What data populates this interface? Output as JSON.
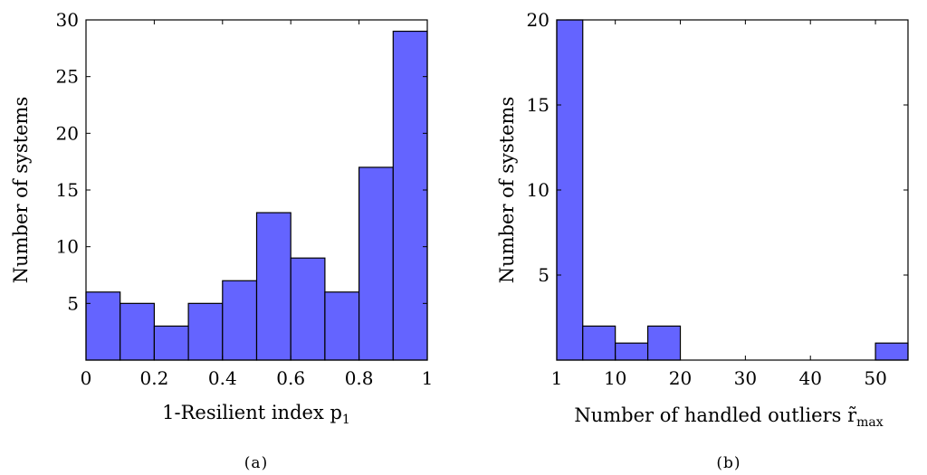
{
  "chart_data": [
    {
      "type": "bar",
      "id": "a",
      "caption": "(a)",
      "xlabel": "1-Resilient index p",
      "xlabel_sub": "1",
      "ylabel": "Number of systems",
      "xlim": [
        0,
        1
      ],
      "ylim": [
        0,
        30
      ],
      "xticks": [
        0,
        0.2,
        0.4,
        0.6,
        0.8,
        1
      ],
      "xtick_labels": [
        "0",
        "0.2",
        "0.4",
        "0.6",
        "0.8",
        "1"
      ],
      "yticks": [
        5,
        10,
        15,
        20,
        25,
        30
      ],
      "ytick_labels": [
        "5",
        "10",
        "15",
        "20",
        "25",
        "30"
      ],
      "bins": [
        {
          "x0": 0.0,
          "x1": 0.1,
          "value": 6
        },
        {
          "x0": 0.1,
          "x1": 0.2,
          "value": 5
        },
        {
          "x0": 0.2,
          "x1": 0.3,
          "value": 3
        },
        {
          "x0": 0.3,
          "x1": 0.4,
          "value": 5
        },
        {
          "x0": 0.4,
          "x1": 0.5,
          "value": 7
        },
        {
          "x0": 0.5,
          "x1": 0.6,
          "value": 13
        },
        {
          "x0": 0.6,
          "x1": 0.7,
          "value": 9
        },
        {
          "x0": 0.7,
          "x1": 0.8,
          "value": 6
        },
        {
          "x0": 0.8,
          "x1": 0.9,
          "value": 17
        },
        {
          "x0": 0.9,
          "x1": 1.0,
          "value": 29
        }
      ],
      "bar_color": "#6464ff",
      "grid": false
    },
    {
      "type": "bar",
      "id": "b",
      "caption": "(b)",
      "xlabel": "Number of handled outliers r̃",
      "xlabel_sub": "max",
      "ylabel": "Number of systems",
      "xlim": [
        1,
        55
      ],
      "ylim": [
        0,
        20
      ],
      "xticks": [
        1,
        10,
        20,
        30,
        40,
        50
      ],
      "xtick_labels": [
        "1",
        "10",
        "20",
        "30",
        "40",
        "50"
      ],
      "yticks": [
        5,
        10,
        15,
        20
      ],
      "ytick_labels": [
        "5",
        "10",
        "15",
        "20"
      ],
      "bins": [
        {
          "x0": 1,
          "x1": 5,
          "value": 20
        },
        {
          "x0": 5,
          "x1": 10,
          "value": 2
        },
        {
          "x0": 10,
          "x1": 15,
          "value": 1
        },
        {
          "x0": 15,
          "x1": 20,
          "value": 2
        },
        {
          "x0": 50,
          "x1": 55,
          "value": 1
        }
      ],
      "bar_color": "#6464ff",
      "grid": false
    }
  ]
}
